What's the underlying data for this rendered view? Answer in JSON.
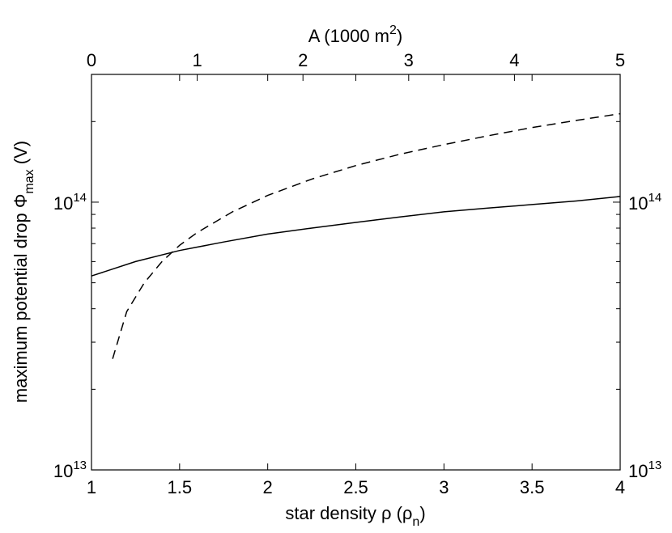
{
  "chart_data": {
    "type": "line",
    "title": "",
    "xlabel": "star density ρ (ρ",
    "xlabel_sub": "n",
    "xlabel_close": ")",
    "ylabel": "maximum potential drop Φ",
    "ylabel_sub": "max",
    "ylabel_unit": " (V)",
    "x2label": "A (1000 m",
    "x2label_sup": "2",
    "x2label_close": ")",
    "xlim": [
      1,
      4
    ],
    "x2lim": [
      0,
      5
    ],
    "ylim": [
      10000000000000.0,
      300000000000000.0
    ],
    "yscale": "log",
    "grid": false,
    "legend": "none",
    "x_ticks": [
      "1",
      "1.5",
      "2",
      "2.5",
      "3",
      "3.5",
      "4"
    ],
    "x_tick_values": [
      1,
      1.5,
      2,
      2.5,
      3,
      3.5,
      4
    ],
    "x2_ticks": [
      "0",
      "1",
      "2",
      "3",
      "4",
      "5"
    ],
    "x2_tick_values": [
      0,
      1,
      2,
      3,
      4,
      5
    ],
    "y_ticks": [
      {
        "value": 100000000000000.0,
        "base": "10",
        "exp": "14"
      },
      {
        "value": 10000000000000.0,
        "base": "10",
        "exp": "13"
      }
    ],
    "y_minor_ticks": [
      20000000000000.0,
      30000000000000.0,
      40000000000000.0,
      50000000000000.0,
      60000000000000.0,
      70000000000000.0,
      80000000000000.0,
      90000000000000.0,
      200000000000000.0,
      300000000000000.0
    ],
    "series": [
      {
        "style": "solid",
        "color": "#000000",
        "axis": "bottom",
        "x": [
          1.0,
          1.25,
          1.5,
          1.75,
          2.0,
          2.25,
          2.5,
          2.75,
          3.0,
          3.25,
          3.5,
          3.75,
          4.0
        ],
        "y": [
          53000000000000.0,
          60000000000000.0,
          66000000000000.0,
          71000000000000.0,
          76000000000000.0,
          80000000000000.0,
          84000000000000.0,
          88000000000000.0,
          92000000000000.0,
          95000000000000.0,
          98000000000000.0,
          101000000000000.0,
          105000000000000.0
        ]
      },
      {
        "style": "dashed",
        "color": "#000000",
        "axis": "bottom",
        "x": [
          1.12,
          1.2,
          1.3,
          1.4,
          1.5,
          1.6,
          1.8,
          2.0,
          2.25,
          2.5,
          2.75,
          3.0,
          3.25,
          3.5,
          3.75,
          4.0
        ],
        "y": [
          26000000000000.0,
          39000000000000.0,
          50000000000000.0,
          60000000000000.0,
          69000000000000.0,
          77000000000000.0,
          92000000000000.0,
          106000000000000.0,
          122000000000000.0,
          137000000000000.0,
          151000000000000.0,
          164000000000000.0,
          177000000000000.0,
          190000000000000.0,
          202000000000000.0,
          214000000000000.0
        ]
      }
    ]
  }
}
